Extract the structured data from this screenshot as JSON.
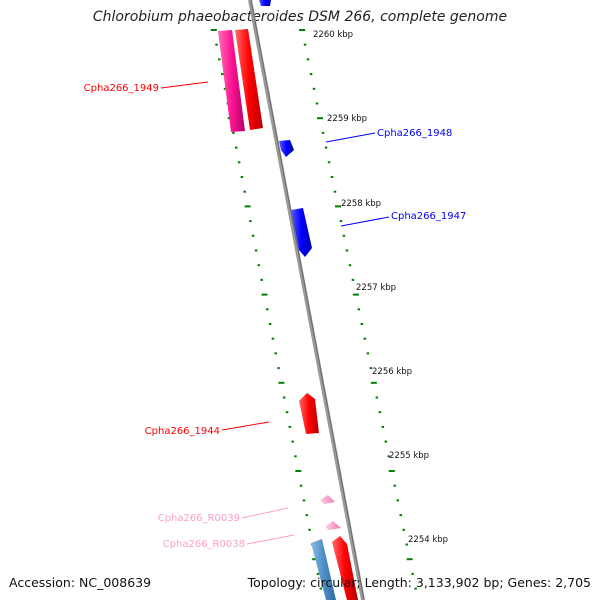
{
  "title": "Chlorobium phaeobacteroides DSM 266, complete genome",
  "footer": {
    "accession": "Accession: NC_008639",
    "topology": "Topology: circular; Length: 3,133,902 bp; Genes: 2,705"
  },
  "colors": {
    "forward_cds": "#ff0000",
    "reverse_cds": "#0000ff",
    "forward_pink": "#ff1493",
    "trna": "#ff9ec8",
    "steelblue": "#4f8fc7",
    "backbone": "#888888",
    "ticks": "#008000"
  },
  "ticks": [
    {
      "label": "2260 kbp"
    },
    {
      "label": "2259 kbp"
    },
    {
      "label": "2258 kbp"
    },
    {
      "label": "2257 kbp"
    },
    {
      "label": "2256 kbp"
    },
    {
      "label": "2255 kbp"
    },
    {
      "label": "2254 kbp"
    }
  ],
  "gene_labels": [
    {
      "name": "Cpha266_1949",
      "color": "#ff0000"
    },
    {
      "name": "Cpha266_1948",
      "color": "#0000ff"
    },
    {
      "name": "Cpha266_1947",
      "color": "#0000ff"
    },
    {
      "name": "Cpha266_1944",
      "color": "#ff0000"
    },
    {
      "name": "Cpha266_R0039",
      "color": "#ff9ec8"
    },
    {
      "name": "Cpha266_R0038",
      "color": "#ff9ec8"
    }
  ]
}
